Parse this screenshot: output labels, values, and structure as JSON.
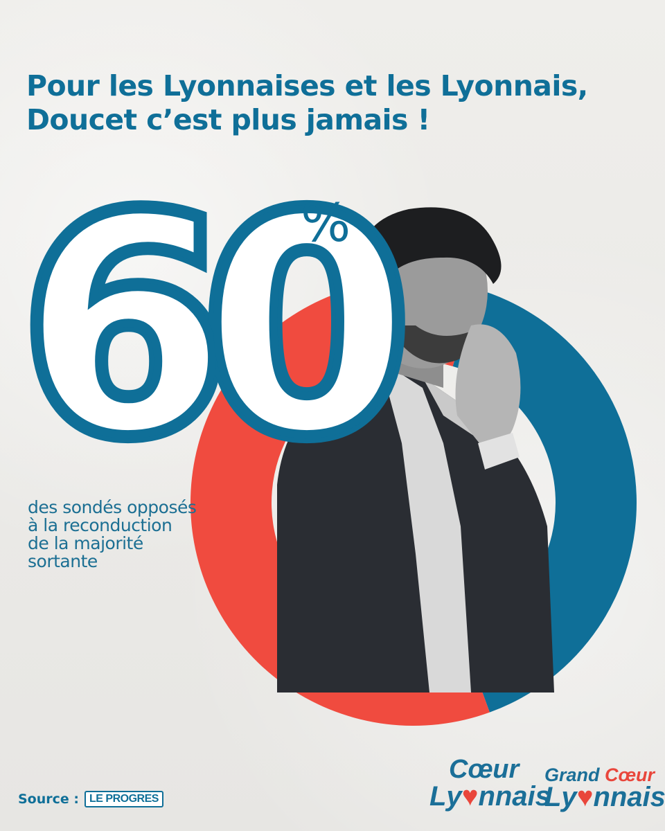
{
  "headline": {
    "line1": "Pour les Lyonnaises et les Lyonnais,",
    "line2": "Doucet c’est plus jamais !"
  },
  "chart_data": {
    "type": "pie",
    "style": "donut",
    "slices": [
      {
        "value": 60,
        "color": "#f04b3f"
      },
      {
        "value": 40,
        "color": "#0f6f98"
      }
    ],
    "value_label": "60",
    "unit_label": "%",
    "caption_lines": [
      "des sondés opposés",
      "à la reconduction",
      "de la majorité",
      "sortante"
    ]
  },
  "photo": {
    "icon": "person-photo-icon"
  },
  "source": {
    "label": "Source :",
    "outlet": "LE PROGRES"
  },
  "logos": {
    "first": {
      "line1_a": "Cœur",
      "line2_a": "Ly",
      "line2_heart": "♥",
      "line2_b": "nnais"
    },
    "second": {
      "line1_a": "Grand ",
      "line1_b": "Cœur",
      "line2_a": "Ly",
      "line2_heart": "♥",
      "line2_b": "nnais"
    }
  },
  "colors": {
    "blue": "#0f6f98",
    "red": "#f04b3f"
  }
}
